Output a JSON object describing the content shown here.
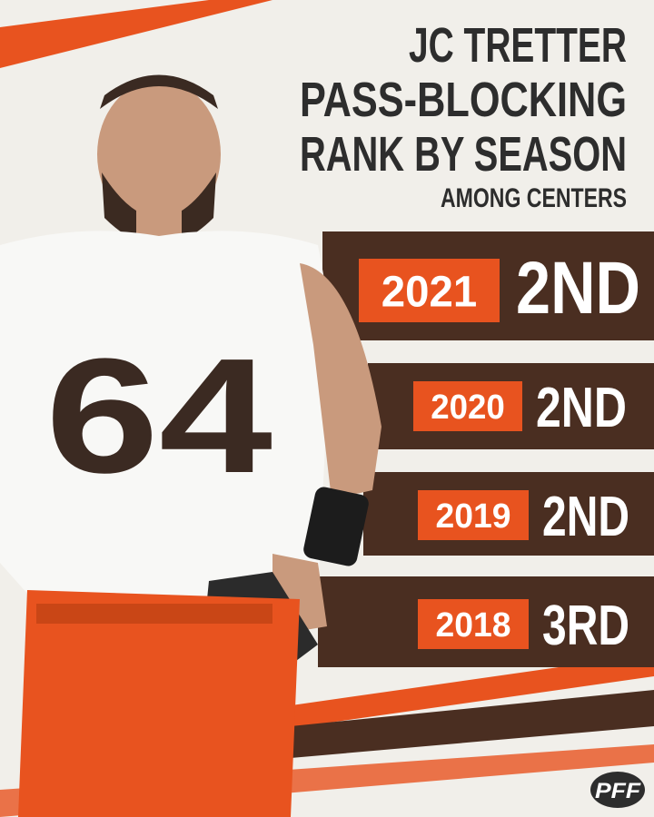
{
  "header": {
    "title_lines": [
      "JC TRETTER",
      "PASS-BLOCKING",
      "RANK BY SEASON"
    ],
    "subtitle": "AMONG CENTERS"
  },
  "seasons": [
    {
      "year": "2021",
      "rank": "2ND"
    },
    {
      "year": "2020",
      "rank": "2ND"
    },
    {
      "year": "2019",
      "rank": "2ND"
    },
    {
      "year": "2018",
      "rank": "3RD"
    }
  ],
  "player": {
    "jersey_number": "64"
  },
  "logo": "PFF"
}
